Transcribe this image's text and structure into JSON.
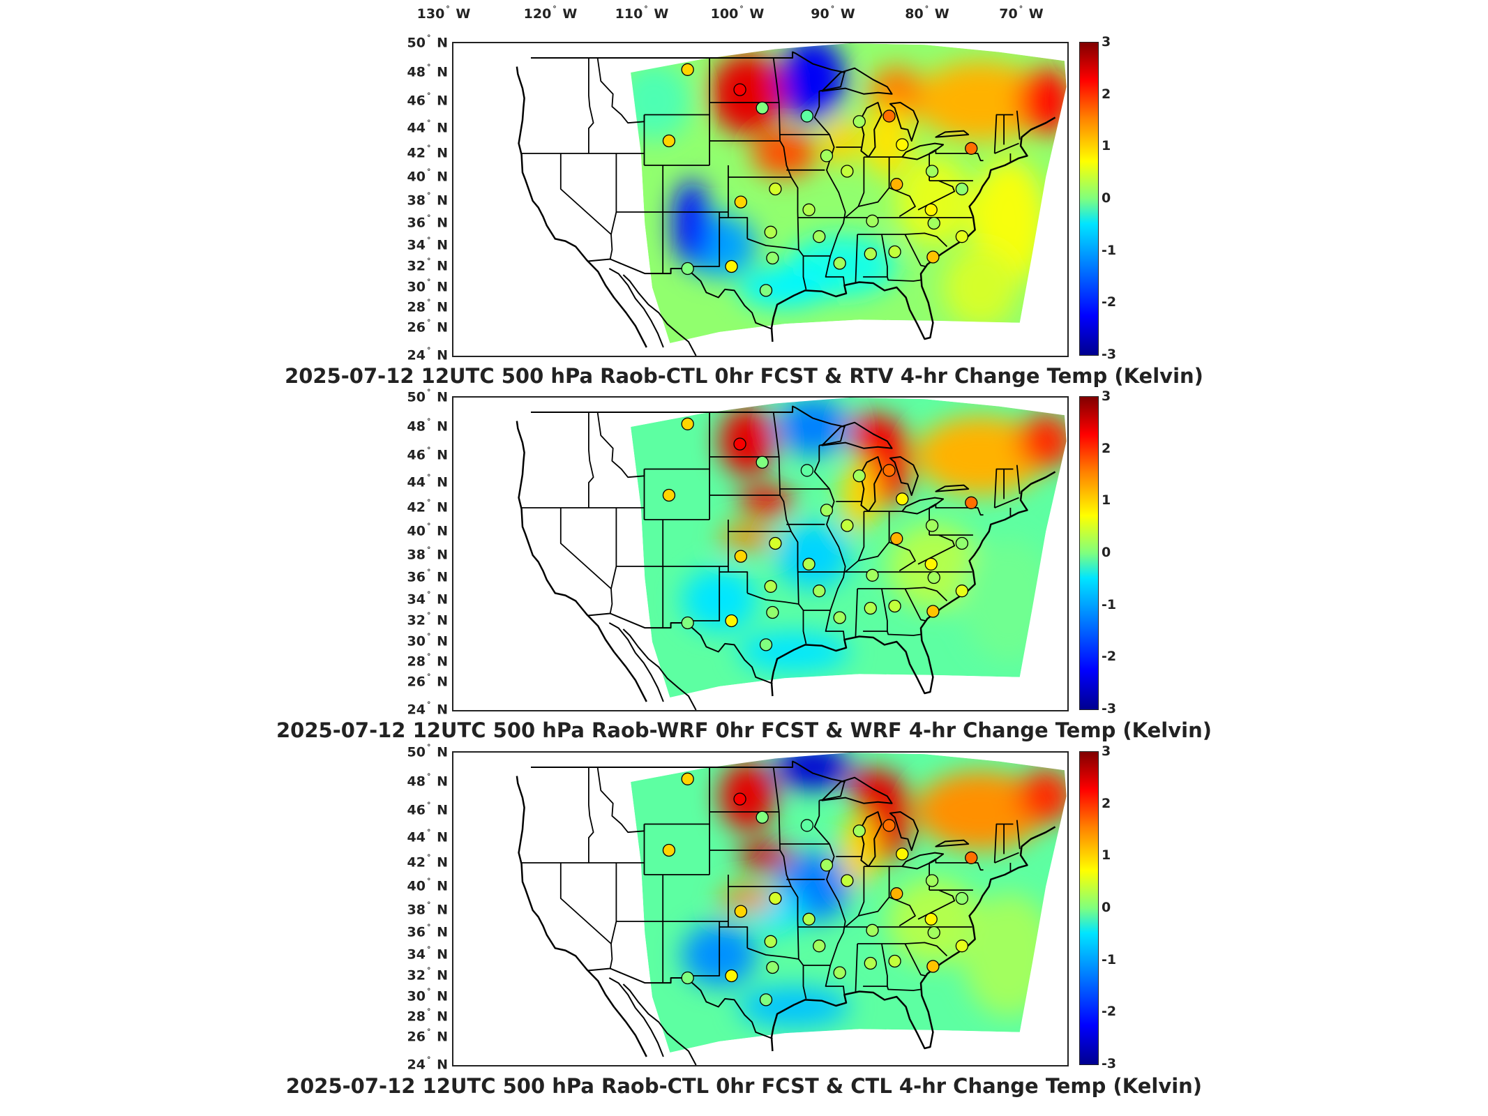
{
  "lon_labels": [
    {
      "deg": "130",
      "hemi": "W"
    },
    {
      "deg": "120",
      "hemi": "W"
    },
    {
      "deg": "110",
      "hemi": "W"
    },
    {
      "deg": "100",
      "hemi": "W"
    },
    {
      "deg": "90",
      "hemi": "W"
    },
    {
      "deg": "80",
      "hemi": "W"
    },
    {
      "deg": "70",
      "hemi": "W"
    }
  ],
  "lat_labels": [
    {
      "deg": "50",
      "hemi": "N"
    },
    {
      "deg": "48",
      "hemi": "N"
    },
    {
      "deg": "46",
      "hemi": "N"
    },
    {
      "deg": "44",
      "hemi": "N"
    },
    {
      "deg": "42",
      "hemi": "N"
    },
    {
      "deg": "40",
      "hemi": "N"
    },
    {
      "deg": "38",
      "hemi": "N"
    },
    {
      "deg": "36",
      "hemi": "N"
    },
    {
      "deg": "34",
      "hemi": "N"
    },
    {
      "deg": "32",
      "hemi": "N"
    },
    {
      "deg": "30",
      "hemi": "N"
    },
    {
      "deg": "28",
      "hemi": "N"
    },
    {
      "deg": "26",
      "hemi": "N"
    },
    {
      "deg": "24",
      "hemi": "N"
    }
  ],
  "colorbar": {
    "ticks": [
      "3",
      "2",
      "1",
      "0",
      "-1",
      "-2",
      "-3"
    ],
    "range": [
      -3,
      3
    ],
    "colormap": "jet"
  },
  "panels": [
    {
      "title": "2025-07-12 12UTC 500 hPa Raob-CTL 0hr FCST & RTV 4-hr Change Temp (Kelvin)"
    },
    {
      "title": "2025-07-12 12UTC 500 hPa Raob-WRF 0hr FCST & WRF 4-hr Change Temp (Kelvin)"
    },
    {
      "title": "2025-07-12 12UTC 500 hPa Raob-CTL 0hr FCST & CTL 4-hr Change Temp (Kelvin)"
    }
  ],
  "stations": [
    {
      "lon": -106.4,
      "lat": 48.2,
      "value": 1.0
    },
    {
      "lon": -100.8,
      "lat": 46.8,
      "value": 2.3
    },
    {
      "lon": -98.4,
      "lat": 45.5,
      "value": 0.0
    },
    {
      "lon": -93.6,
      "lat": 44.9,
      "value": -0.2
    },
    {
      "lon": -88.0,
      "lat": 44.5,
      "value": 0.2
    },
    {
      "lon": -84.8,
      "lat": 44.9,
      "value": 1.6
    },
    {
      "lon": -83.4,
      "lat": 42.7,
      "value": 0.8
    },
    {
      "lon": -76.0,
      "lat": 42.4,
      "value": 1.6
    },
    {
      "lon": -108.4,
      "lat": 43.0,
      "value": 1.0
    },
    {
      "lon": -91.5,
      "lat": 41.8,
      "value": 0.2
    },
    {
      "lon": -89.3,
      "lat": 40.5,
      "value": 0.4
    },
    {
      "lon": -84.0,
      "lat": 39.4,
      "value": 1.2
    },
    {
      "lon": -80.2,
      "lat": 40.5,
      "value": 0.2
    },
    {
      "lon": -77.0,
      "lat": 39.0,
      "value": 0.1
    },
    {
      "lon": -100.7,
      "lat": 37.9,
      "value": 1.0
    },
    {
      "lon": -97.0,
      "lat": 39.0,
      "value": 0.5
    },
    {
      "lon": -93.4,
      "lat": 37.2,
      "value": 0.3
    },
    {
      "lon": -86.6,
      "lat": 36.2,
      "value": 0.2
    },
    {
      "lon": -80.3,
      "lat": 37.2,
      "value": 0.8
    },
    {
      "lon": -80.0,
      "lat": 36.0,
      "value": 0.2
    },
    {
      "lon": -97.5,
      "lat": 35.2,
      "value": 0.3
    },
    {
      "lon": -92.3,
      "lat": 34.8,
      "value": 0.2
    },
    {
      "lon": -86.8,
      "lat": 33.2,
      "value": 0.3
    },
    {
      "lon": -84.2,
      "lat": 33.4,
      "value": 0.4
    },
    {
      "lon": -80.1,
      "lat": 32.9,
      "value": 1.1
    },
    {
      "lon": -77.0,
      "lat": 34.8,
      "value": 0.6
    },
    {
      "lon": -101.7,
      "lat": 32.0,
      "value": 0.8
    },
    {
      "lon": -106.4,
      "lat": 31.8,
      "value": 0.0
    },
    {
      "lon": -97.3,
      "lat": 32.8,
      "value": 0.1
    },
    {
      "lon": -90.1,
      "lat": 32.3,
      "value": 0.2
    },
    {
      "lon": -98.0,
      "lat": 29.7,
      "value": 0.0
    }
  ]
}
